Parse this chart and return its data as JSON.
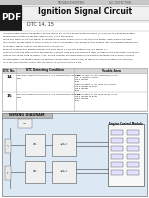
{
  "title": "Ignition Signal Circuit",
  "subtitle": "DTC 14, 15",
  "header_label": "TROUBLESHOOTING",
  "doc_label": "DLC DETECTION",
  "bg_color": "#ffffff",
  "pdf_icon_bg": "#1a1a1a",
  "pdf_icon_text": "PDF",
  "text_color": "#222222",
  "table_border_color": "#aaaaaa",
  "diagram_bg": "#dde8f0",
  "diagram_title": "WIRING DIAGRAM",
  "diagram_label": "Engine Control Module",
  "body_lines": [
    "The ECM determines the ignition timing (turns on T4 at a predetermined angle (CA) before the desired ignition",
    "timing and outputs an ignition signal (IGT) T1 to the igniter.",
    "Since the state of the IGT signal is constant the input angle control circuit in the igniter determines the time",
    "the control circuit starts primary current flow to the ignition coil based on the engine rpm and ignition timing and",
    "revolution signal, that is, the time that T4 turns on.",
    "When it reaches the ignition timing, the ECM turns T4 off and outputs the IGT signal T1.",
    "This turns the coil interrupting the primary current flow and generating a high voltage in the secondary coil which",
    "causes the spark plug to spark. Also, as the counter electromotive force generated when the primary current",
    "is interrupted, the igniter sends an ignition confirmation signal (IGF) to the ECM. The ECM stops fuel injection",
    "as a fail-safe function when the IGF signal is not input to the ECM."
  ],
  "table_headers": [
    "DTC No.",
    "DTC Detecting Condition",
    "Trouble Area"
  ],
  "table_rows": [
    {
      "dtc": "14",
      "condition": "No IGT1 signal to ECM for 4~11 consecutive IGT1 sig-\nnals",
      "trouble": "Open or short in IGT1 (and IGF) circuit\nNo. 1 igniter to ECM\nNo.1 igniter\nECM\nOpen or short in IGF (and IGT) circuit\nNo.4 igniter to ECM\nNo.4 igniter\nECM"
    },
    {
      "dtc": "15",
      "condition": "No IGT4 signal to ECM for 4~11 consecutive IGT4 sig-\nnals",
      "trouble": "Open or short in IGF (and IGT4) circuit\nNo.4 igniter to ECM\nNo.4 igniter\nECM"
    }
  ],
  "header_bar_color": "#c8c8c8",
  "title_box_color": "#f0f0f0",
  "table_header_bg": "#d8d8d8"
}
